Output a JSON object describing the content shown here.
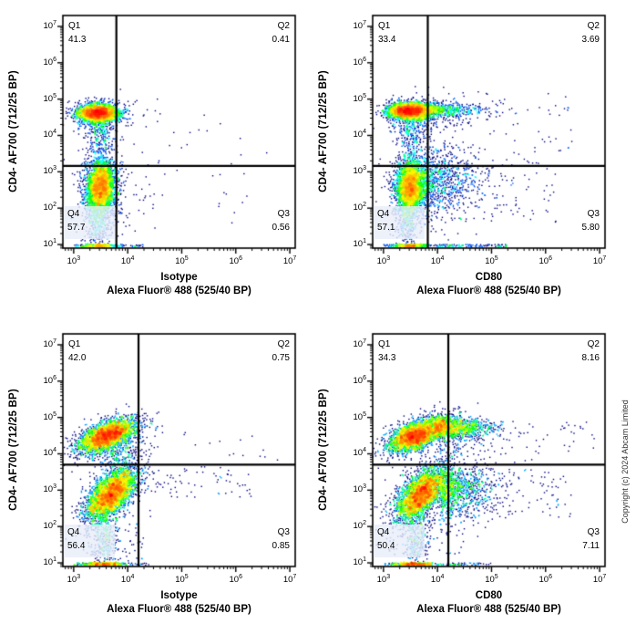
{
  "figure": {
    "background": "#ffffff",
    "copyright": "Copyright (c) 2024 Abcam Limited"
  },
  "colors": {
    "axis": "#000000",
    "gate": "#000000",
    "q4_label_background": "rgba(233,237,249,0.8)",
    "density_colormap": [
      "#000080",
      "#0000ff",
      "#00ffff",
      "#00ff00",
      "#ffff00",
      "#ff8000",
      "#ff0000"
    ]
  },
  "axis": {
    "tick_base": "10",
    "x_scale": "log",
    "y_scale": "log"
  },
  "chart_data": [
    {
      "type": "scatter",
      "ylabel": "CD4- AF700 (712/25 BP)",
      "xlabel_line1": "Isotype",
      "xlabel_line2": "Alexa Fluor® 488  (525/40 BP)",
      "x_ticks_exp": [
        3,
        4,
        5,
        6,
        7
      ],
      "y_ticks_exp": [
        1,
        2,
        3,
        4,
        5,
        6,
        7
      ],
      "xlim_log": [
        2.8,
        7.1
      ],
      "ylim_log": [
        0.9,
        7.3
      ],
      "gate": {
        "x_log": 3.79,
        "y_log": 3.16
      },
      "quadrants": [
        {
          "label": "Q1",
          "value": "41.3"
        },
        {
          "label": "Q2",
          "value": "0.41"
        },
        {
          "label": "Q3",
          "value": "0.56"
        },
        {
          "label": "Q4",
          "value": "57.7"
        }
      ],
      "seed": 11,
      "populations": [
        {
          "type": "gauss",
          "n": 2800,
          "cx": 3.45,
          "cy": 4.62,
          "sx": 0.17,
          "sy": 0.11,
          "rho": 0
        },
        {
          "type": "gauss",
          "n": 500,
          "cx": 3.47,
          "cy": 4.56,
          "sx": 0.26,
          "sy": 0.21,
          "rho": 0
        },
        {
          "type": "gauss",
          "n": 220,
          "cx": 3.5,
          "cy": 4.05,
          "sx": 0.13,
          "sy": 0.33,
          "rho": 0
        },
        {
          "type": "gauss",
          "n": 3000,
          "cx": 3.5,
          "cy": 2.6,
          "sx": 0.12,
          "sy": 0.35,
          "rho": 0.1
        },
        {
          "type": "gauss",
          "n": 700,
          "cx": 3.5,
          "cy": 2.5,
          "sx": 0.2,
          "sy": 0.55,
          "rho": 0
        },
        {
          "type": "gauss",
          "n": 250,
          "cx": 3.45,
          "cy": 1.55,
          "sx": 0.1,
          "sy": 0.35,
          "rho": 0
        },
        {
          "type": "gauss",
          "n": 260,
          "cx": 3.5,
          "cy": 0.97,
          "sx": 0.14,
          "sy": 0.02,
          "rho": 0
        },
        {
          "type": "uniform",
          "n": 90,
          "x0": 3.0,
          "x1": 4.3,
          "y0": 0.93,
          "y1": 1.0
        },
        {
          "type": "uniform",
          "n": 80,
          "x0": 3.1,
          "x1": 4.6,
          "y0": 1.2,
          "y1": 5.0
        },
        {
          "type": "uniform",
          "n": 30,
          "x0": 4.2,
          "x1": 6.6,
          "y0": 1.5,
          "y1": 4.6
        }
      ]
    },
    {
      "type": "scatter",
      "ylabel": "CD4- AF700 (712/25 BP)",
      "xlabel_line1": "CD80",
      "xlabel_line2": "Alexa Fluor® 488  (525/40 BP)",
      "x_ticks_exp": [
        3,
        4,
        5,
        6,
        7
      ],
      "y_ticks_exp": [
        1,
        2,
        3,
        4,
        5,
        6,
        7
      ],
      "xlim_log": [
        2.8,
        7.1
      ],
      "ylim_log": [
        0.9,
        7.3
      ],
      "gate": {
        "x_log": 3.82,
        "y_log": 3.16
      },
      "quadrants": [
        {
          "label": "Q1",
          "value": "33.4"
        },
        {
          "label": "Q2",
          "value": "3.69"
        },
        {
          "label": "Q3",
          "value": "5.80"
        },
        {
          "label": "Q4",
          "value": "57.1"
        }
      ],
      "seed": 22,
      "populations": [
        {
          "type": "gauss",
          "n": 2600,
          "cx": 3.45,
          "cy": 4.68,
          "sx": 0.17,
          "sy": 0.1,
          "rho": 0
        },
        {
          "type": "gauss",
          "n": 450,
          "cx": 3.5,
          "cy": 4.6,
          "sx": 0.26,
          "sy": 0.2,
          "rho": 0
        },
        {
          "type": "tailx",
          "n": 750,
          "x0": 3.55,
          "xs": 0.55,
          "cy": 4.7,
          "sy": 0.09
        },
        {
          "type": "tailx",
          "n": 180,
          "x0": 3.6,
          "xs": 0.6,
          "cy": 4.62,
          "sy": 0.24
        },
        {
          "type": "gauss",
          "n": 200,
          "cx": 3.5,
          "cy": 4.05,
          "sx": 0.13,
          "sy": 0.33,
          "rho": 0
        },
        {
          "type": "gauss",
          "n": 2800,
          "cx": 3.5,
          "cy": 2.6,
          "sx": 0.12,
          "sy": 0.35,
          "rho": 0.1
        },
        {
          "type": "gauss",
          "n": 600,
          "cx": 3.5,
          "cy": 2.5,
          "sx": 0.2,
          "sy": 0.55,
          "rho": 0
        },
        {
          "type": "tailx",
          "n": 850,
          "x0": 3.7,
          "xs": 0.55,
          "cy": 2.75,
          "sy": 0.45
        },
        {
          "type": "uniform",
          "n": 60,
          "x0": 4.8,
          "x1": 6.2,
          "y0": 1.5,
          "y1": 3.3
        },
        {
          "type": "uniform",
          "n": 45,
          "x0": 4.8,
          "x1": 6.5,
          "y0": 3.3,
          "y1": 5.2
        },
        {
          "type": "uniform",
          "n": 90,
          "x0": 3.1,
          "x1": 4.8,
          "y0": 1.2,
          "y1": 4.5
        },
        {
          "type": "gauss",
          "n": 230,
          "cx": 3.45,
          "cy": 1.55,
          "sx": 0.1,
          "sy": 0.35,
          "rho": 0
        },
        {
          "type": "gauss",
          "n": 280,
          "cx": 3.5,
          "cy": 0.97,
          "sx": 0.14,
          "sy": 0.02,
          "rho": 0
        },
        {
          "type": "uniform",
          "n": 200,
          "x0": 3.0,
          "x1": 5.3,
          "y0": 0.93,
          "y1": 1.0
        }
      ]
    },
    {
      "type": "scatter",
      "ylabel": "CD4- AF700 (712/25 BP)",
      "xlabel_line1": "Isotype",
      "xlabel_line2": "Alexa Fluor® 488  (525/40 BP)",
      "x_ticks_exp": [
        3,
        4,
        5,
        6,
        7
      ],
      "y_ticks_exp": [
        1,
        2,
        3,
        4,
        5,
        6,
        7
      ],
      "xlim_log": [
        2.8,
        7.1
      ],
      "ylim_log": [
        0.9,
        7.3
      ],
      "gate": {
        "x_log": 4.2,
        "y_log": 3.7
      },
      "quadrants": [
        {
          "label": "Q1",
          "value": "42.0"
        },
        {
          "label": "Q2",
          "value": "0.75"
        },
        {
          "label": "Q3",
          "value": "0.85"
        },
        {
          "label": "Q4",
          "value": "56.4"
        }
      ],
      "seed": 33,
      "populations": [
        {
          "type": "gauss",
          "n": 2800,
          "cx": 3.62,
          "cy": 4.5,
          "sx": 0.25,
          "sy": 0.22,
          "rho": 0.55
        },
        {
          "type": "gauss",
          "n": 500,
          "cx": 3.65,
          "cy": 4.5,
          "sx": 0.35,
          "sy": 0.3,
          "rho": 0.5
        },
        {
          "type": "gauss",
          "n": 150,
          "cx": 3.9,
          "cy": 4.0,
          "sx": 0.25,
          "sy": 0.2,
          "rho": 0.5
        },
        {
          "type": "gauss",
          "n": 3000,
          "cx": 3.7,
          "cy": 2.9,
          "sx": 0.22,
          "sy": 0.35,
          "rho": 0.6
        },
        {
          "type": "gauss",
          "n": 650,
          "cx": 3.7,
          "cy": 2.85,
          "sx": 0.3,
          "sy": 0.5,
          "rho": 0.5
        },
        {
          "type": "gauss",
          "n": 280,
          "cx": 3.6,
          "cy": 1.6,
          "sx": 0.12,
          "sy": 0.4,
          "rho": 0
        },
        {
          "type": "uniform",
          "n": 70,
          "x0": 4.3,
          "x1": 6.3,
          "y0": 2.8,
          "y1": 3.65
        },
        {
          "type": "uniform",
          "n": 14,
          "x0": 4.9,
          "x1": 6.8,
          "y0": 3.8,
          "y1": 4.6
        },
        {
          "type": "uniform",
          "n": 60,
          "x0": 3.1,
          "x1": 4.3,
          "y0": 1.1,
          "y1": 2.2
        },
        {
          "type": "gauss",
          "n": 300,
          "cx": 3.55,
          "cy": 0.97,
          "sx": 0.18,
          "sy": 0.02,
          "rho": 0
        },
        {
          "type": "uniform",
          "n": 80,
          "x0": 3.0,
          "x1": 4.4,
          "y0": 0.93,
          "y1": 1.0
        }
      ]
    },
    {
      "type": "scatter",
      "ylabel": "CD4- AF700 (712/25 BP)",
      "xlabel_line1": "CD80",
      "xlabel_line2": "Alexa Fluor® 488  (525/40 BP)",
      "x_ticks_exp": [
        3,
        4,
        5,
        6,
        7
      ],
      "y_ticks_exp": [
        1,
        2,
        3,
        4,
        5,
        6,
        7
      ],
      "xlim_log": [
        2.8,
        7.1
      ],
      "ylim_log": [
        0.9,
        7.3
      ],
      "gate": {
        "x_log": 4.2,
        "y_log": 3.7
      },
      "quadrants": [
        {
          "label": "Q1",
          "value": "34.3"
        },
        {
          "label": "Q2",
          "value": "8.16"
        },
        {
          "label": "Q3",
          "value": "7.11"
        },
        {
          "label": "Q4",
          "value": "50.4"
        }
      ],
      "seed": 44,
      "populations": [
        {
          "type": "gauss",
          "n": 2600,
          "cx": 3.6,
          "cy": 4.5,
          "sx": 0.25,
          "sy": 0.22,
          "rho": 0.55
        },
        {
          "type": "gauss",
          "n": 450,
          "cx": 3.65,
          "cy": 4.5,
          "sx": 0.35,
          "sy": 0.3,
          "rho": 0.5
        },
        {
          "type": "tailx",
          "n": 900,
          "x0": 3.95,
          "xs": 0.5,
          "cy": 4.72,
          "sy": 0.14
        },
        {
          "type": "tailx",
          "n": 250,
          "x0": 4.0,
          "xs": 0.55,
          "cy": 4.6,
          "sy": 0.3
        },
        {
          "type": "gauss",
          "n": 2700,
          "cx": 3.7,
          "cy": 2.9,
          "sx": 0.22,
          "sy": 0.35,
          "rho": 0.6
        },
        {
          "type": "gauss",
          "n": 600,
          "cx": 3.7,
          "cy": 2.85,
          "sx": 0.3,
          "sy": 0.5,
          "rho": 0.5
        },
        {
          "type": "tailx",
          "n": 1000,
          "x0": 4.05,
          "xs": 0.5,
          "cy": 3.0,
          "sy": 0.4
        },
        {
          "type": "uniform",
          "n": 70,
          "x0": 5.0,
          "x1": 6.5,
          "y0": 2.2,
          "y1": 3.6
        },
        {
          "type": "uniform",
          "n": 30,
          "x0": 5.5,
          "x1": 6.9,
          "y0": 3.8,
          "y1": 5.0
        },
        {
          "type": "gauss",
          "n": 260,
          "cx": 3.6,
          "cy": 1.6,
          "sx": 0.12,
          "sy": 0.4,
          "rho": 0
        },
        {
          "type": "uniform",
          "n": 80,
          "x0": 3.1,
          "x1": 4.5,
          "y0": 1.1,
          "y1": 2.2
        },
        {
          "type": "gauss",
          "n": 300,
          "cx": 3.55,
          "cy": 0.97,
          "sx": 0.18,
          "sy": 0.02,
          "rho": 0
        },
        {
          "type": "uniform",
          "n": 120,
          "x0": 3.0,
          "x1": 5.0,
          "y0": 0.93,
          "y1": 1.0
        }
      ]
    }
  ]
}
